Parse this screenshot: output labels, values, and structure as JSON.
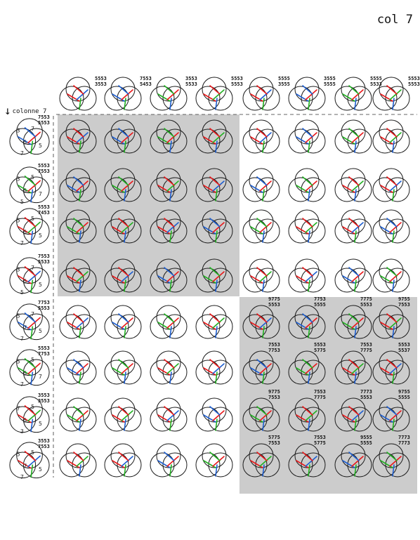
{
  "title": "col 7",
  "axis_label": "colonne 7",
  "shade_color": "#cccccc",
  "strand_colors": {
    "red": "#e8191b",
    "blue": "#1f5fd0",
    "green": "#22b022"
  },
  "column_labels": [
    [
      "5553",
      "3553"
    ],
    [
      "7553",
      "5453"
    ],
    [
      "3553",
      "5533"
    ],
    [
      "5553",
      "5553"
    ],
    [
      "5555",
      "3555"
    ],
    [
      "3555",
      "5555"
    ],
    [
      "5555",
      "5533"
    ],
    [
      "5553",
      "5553"
    ]
  ],
  "row_labels": [
    [
      "7553",
      "5553"
    ],
    [
      "5553",
      "7553"
    ],
    [
      "5553",
      "7453"
    ],
    [
      "7553",
      "5533"
    ],
    [
      "7753",
      "5553"
    ],
    [
      "5553",
      "7753"
    ],
    [
      "3553",
      "3553"
    ],
    [
      "3553",
      "7553"
    ]
  ],
  "row_region_numbers": [
    [
      "3",
      "7",
      "5",
      "5",
      "7"
    ],
    [
      "3",
      "5",
      "5",
      "7",
      "5"
    ],
    [
      "5",
      "5",
      "5",
      "5",
      "7"
    ],
    [
      "3",
      "7",
      "5",
      "5",
      "5"
    ],
    [
      "5",
      "7",
      "7",
      "5",
      "7"
    ],
    [
      "5",
      "5",
      "5",
      "7",
      "7"
    ],
    [
      "7",
      "5",
      "5",
      "5",
      "3"
    ],
    [
      "5",
      "5",
      "7",
      "5",
      "7"
    ]
  ],
  "cell_labels": [
    [
      [
        "9775",
        "5553"
      ],
      [
        "7753",
        "5555"
      ],
      [
        "7775",
        "5553"
      ],
      [
        "9755",
        "7553"
      ]
    ],
    [
      [
        "7553",
        "7753"
      ],
      [
        "5553",
        "5775"
      ],
      [
        "7553",
        "7775"
      ],
      [
        "5553",
        "5537"
      ]
    ],
    [
      [
        "9775",
        "7553"
      ],
      [
        "7553",
        "7775"
      ],
      [
        "7773",
        "5553"
      ],
      [
        "9755",
        "5555"
      ]
    ],
    [
      [
        "5775",
        "7553"
      ],
      [
        "7553",
        "5775"
      ],
      [
        "9555",
        "5555"
      ],
      [
        "7773",
        "7773"
      ]
    ]
  ]
}
